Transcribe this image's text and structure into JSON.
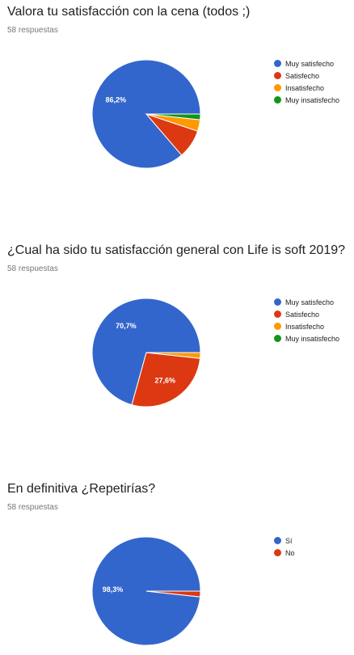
{
  "colors": {
    "blue": "#3366cc",
    "red": "#dc3912",
    "orange": "#ff9900",
    "green": "#109618"
  },
  "chart_data": [
    {
      "type": "pie",
      "title": "Valora tu satisfacción con la cena (todos ;)",
      "subtitle": "58 respuestas",
      "legend_position": "right",
      "slices": [
        {
          "label": "Muy satisfecho",
          "value": 86.2,
          "color": "#3366cc",
          "data_label": "86,2%"
        },
        {
          "label": "Satisfecho",
          "value": 8.6,
          "color": "#dc3912",
          "data_label": ""
        },
        {
          "label": "Insatisfecho",
          "value": 3.4,
          "color": "#ff9900",
          "data_label": ""
        },
        {
          "label": "Muy insatisfecho",
          "value": 1.7,
          "color": "#109618",
          "data_label": ""
        }
      ]
    },
    {
      "type": "pie",
      "title": "¿Cual ha sido tu satisfacción general con Life is soft 2019?",
      "subtitle": "58 respuestas",
      "legend_position": "right",
      "slices": [
        {
          "label": "Muy satisfecho",
          "value": 70.7,
          "color": "#3366cc",
          "data_label": "70,7%"
        },
        {
          "label": "Satisfecho",
          "value": 27.6,
          "color": "#dc3912",
          "data_label": "27,6%"
        },
        {
          "label": "Insatisfecho",
          "value": 1.7,
          "color": "#ff9900",
          "data_label": ""
        },
        {
          "label": "Muy insatisfecho",
          "value": 0,
          "color": "#109618",
          "data_label": ""
        }
      ]
    },
    {
      "type": "pie",
      "title": "En definitiva ¿Repetirías?",
      "subtitle": "58 respuestas",
      "legend_position": "right",
      "slices": [
        {
          "label": "Sí",
          "value": 98.3,
          "color": "#3366cc",
          "data_label": "98,3%"
        },
        {
          "label": "No",
          "value": 1.7,
          "color": "#dc3912",
          "data_label": ""
        }
      ]
    }
  ]
}
